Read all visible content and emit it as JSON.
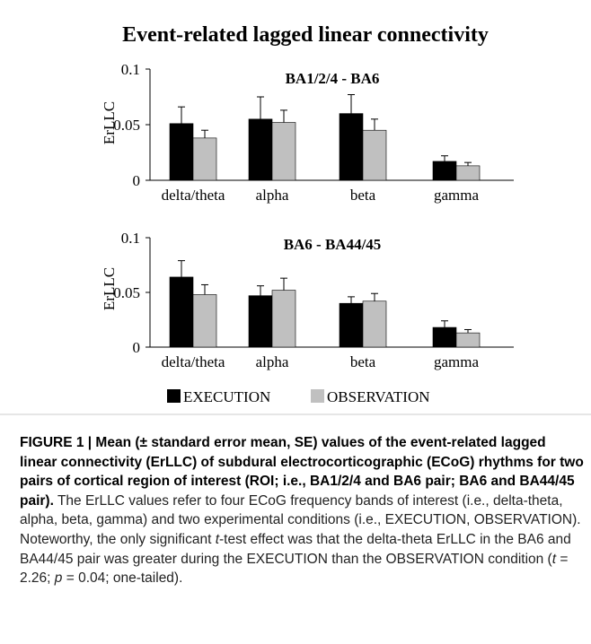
{
  "figure": {
    "title": "Event-related lagged linear connectivity",
    "legend": [
      {
        "label": "EXECUTION",
        "color": "#000000"
      },
      {
        "label": "OBSERVATION",
        "color": "#c0c0c0"
      }
    ]
  },
  "chart_data": [
    {
      "type": "bar",
      "title": "BA1/2/4 - BA6",
      "ylabel": "ErLLC",
      "ylim": [
        0,
        0.1
      ],
      "yticks": [
        "0",
        "0.05",
        "0.1"
      ],
      "categories": [
        "delta/theta",
        "alpha",
        "beta",
        "gamma"
      ],
      "series": [
        {
          "name": "EXECUTION",
          "color": "#000000",
          "values": [
            0.051,
            0.055,
            0.06,
            0.017
          ],
          "errors": [
            0.015,
            0.02,
            0.017,
            0.005
          ]
        },
        {
          "name": "OBSERVATION",
          "color": "#c0c0c0",
          "values": [
            0.038,
            0.052,
            0.045,
            0.013
          ],
          "errors": [
            0.007,
            0.011,
            0.01,
            0.003
          ]
        }
      ]
    },
    {
      "type": "bar",
      "title": "BA6 - BA44/45",
      "ylabel": "ErLLC",
      "ylim": [
        0,
        0.1
      ],
      "yticks": [
        "0",
        "0.05",
        "0.1"
      ],
      "categories": [
        "delta/theta",
        "alpha",
        "beta",
        "gamma"
      ],
      "series": [
        {
          "name": "EXECUTION",
          "color": "#000000",
          "values": [
            0.064,
            0.047,
            0.04,
            0.018
          ],
          "errors": [
            0.015,
            0.009,
            0.006,
            0.006
          ]
        },
        {
          "name": "OBSERVATION",
          "color": "#c0c0c0",
          "values": [
            0.048,
            0.052,
            0.042,
            0.013
          ],
          "errors": [
            0.009,
            0.011,
            0.007,
            0.003
          ]
        }
      ]
    }
  ],
  "caption": {
    "label": "FIGURE 1 | Mean (± standard error mean, SE) values of the event-related lagged linear connectivity (ErLLC) of subdural electrocorticographic (ECoG) rhythms for two pairs of cortical region of interest (ROI; i.e., BA1/2/4 and BA6 pair; BA6 and BA44/45 pair).",
    "body_1": "The ErLLC values refer to four ECoG frequency bands of interest (i.e., delta-theta, alpha, beta, gamma) and two experimental conditions (i.e., EXECUTION, OBSERVATION). Noteworthy, the only significant ",
    "italic_t": "t",
    "body_2": "-test effect was that the delta-theta ErLLC in the BA6 and BA44/45 pair was greater during the EXECUTION than the OBSERVATION condition (",
    "stat_1": "t",
    "stat_2": " = 2.26; ",
    "stat_3": "p",
    "stat_4": " = 0.04; one-tailed)."
  }
}
